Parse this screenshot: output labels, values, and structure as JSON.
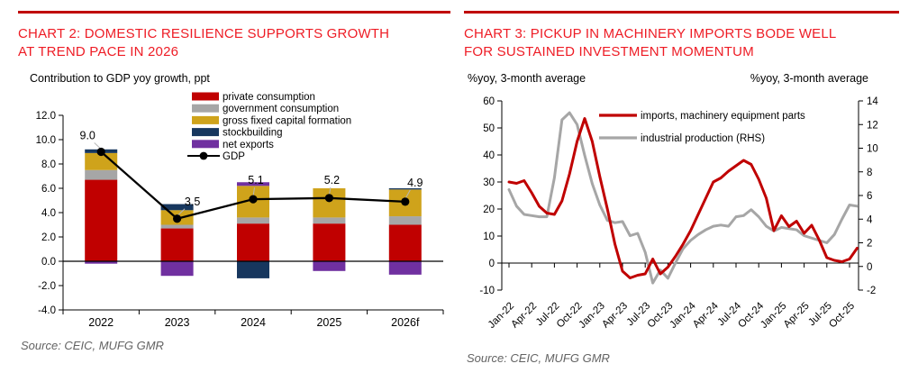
{
  "panels": {
    "chart2": {
      "title_lines": [
        "CHART 2: DOMESTIC RESILIENCE SUPPORTS GROWTH",
        "AT TREND PACE IN 2026"
      ],
      "subtitle": "Contribution to GDP yoy growth, ppt",
      "source": "Source: CEIC, MUFG GMR"
    },
    "chart3": {
      "title_lines": [
        "CHART 3: PICKUP IN MACHINERY IMPORTS BODE WELL",
        "FOR SUSTAINED INVESTMENT MOMENTUM"
      ],
      "subtitle_left": "%yoy, 3-month average",
      "subtitle_right": "%yoy, 3-month average",
      "source": "Source: CEIC, MUFG GMR"
    }
  },
  "colors": {
    "rule_red": "#C00000",
    "title_red": "#EE1C25",
    "bar_red": "#C00000",
    "gray": "#A6A6A6",
    "gold": "#CFA31B",
    "navy": "#17375E",
    "purple": "#7030A0",
    "black": "#000000",
    "leader_gray": "#B7B7B7",
    "source_gray": "#636363"
  },
  "chart_data": [
    {
      "type": "bar",
      "stacked": true,
      "title": "Contribution to GDP yoy growth, ppt",
      "categories": [
        "2022",
        "2023",
        "2024",
        "2025",
        "2026f"
      ],
      "series": [
        {
          "name": "private consumption",
          "color": "#C00000",
          "values": [
            6.7,
            2.7,
            3.1,
            3.1,
            3.0
          ]
        },
        {
          "name": "government consumption",
          "color": "#A6A6A6",
          "values": [
            0.8,
            0.3,
            0.5,
            0.5,
            0.7
          ]
        },
        {
          "name": "gross fixed capital formation",
          "color": "#CFA31B",
          "values": [
            1.4,
            1.2,
            2.6,
            2.4,
            2.2
          ]
        },
        {
          "name": "stockbuilding",
          "color": "#17375E",
          "values": [
            0.3,
            0.5,
            -1.4,
            0.0,
            0.1
          ]
        },
        {
          "name": "net exports",
          "color": "#7030A0",
          "values": [
            -0.2,
            -1.2,
            0.3,
            -0.8,
            -1.1
          ]
        }
      ],
      "line_series": {
        "name": "GDP",
        "color": "#000000",
        "values": [
          9.0,
          3.5,
          5.1,
          5.2,
          4.9
        ]
      },
      "data_labels": [
        "9.0",
        "3.5",
        "5.1",
        "5.2",
        "4.9"
      ],
      "ylim": [
        -4,
        12
      ],
      "ytick_step": 2,
      "grid": false,
      "legend_position": "top-right-inside"
    },
    {
      "type": "line",
      "x_tick_labels": [
        "Jan-22",
        "Apr-22",
        "Jul-22",
        "Oct-22",
        "Jan-23",
        "Apr-23",
        "Jul-23",
        "Oct-23",
        "Jan-24",
        "Apr-24",
        "Jul-24",
        "Oct-24",
        "Jan-25",
        "Apr-25",
        "Jul-25",
        "Oct-25"
      ],
      "points_per_tick": 3,
      "n_points": 47,
      "left_axis": {
        "label": "%yoy, 3-month average",
        "ylim": [
          -10,
          60
        ],
        "tick_step": 10
      },
      "right_axis": {
        "label": "%yoy, 3-month average",
        "ylim": [
          -2,
          14
        ],
        "tick_step": 2
      },
      "grid": false,
      "legend_position": "top-inside",
      "series": [
        {
          "name": "imports, machinery equipment parts",
          "axis": "left",
          "color": "#C00000",
          "values": [
            30,
            29.5,
            30.5,
            26,
            21,
            18.5,
            18,
            23,
            33,
            45,
            53.5,
            45,
            32,
            20,
            7,
            -3,
            -5.5,
            -4.5,
            -4,
            1.5,
            -4,
            -1.5,
            2.5,
            7,
            12,
            18,
            24,
            30,
            31.5,
            34,
            36,
            38,
            36.5,
            31,
            24,
            12,
            17.5,
            13.5,
            15.5,
            11,
            14,
            8.5,
            2,
            1,
            0.5,
            1.5,
            5.5
          ]
        },
        {
          "name": "industrial production (RHS)",
          "axis": "right",
          "color": "#A6A6A6",
          "values": [
            6.5,
            5.1,
            4.4,
            4.3,
            4.2,
            4.2,
            7.5,
            12.4,
            13.0,
            12.0,
            9.4,
            7.0,
            5.2,
            3.9,
            3.7,
            3.8,
            2.6,
            2.8,
            1.2,
            -1.4,
            -0.3,
            -1.0,
            0.3,
            1.5,
            2.2,
            2.7,
            3.1,
            3.4,
            3.5,
            3.4,
            4.2,
            4.3,
            4.8,
            4.2,
            3.4,
            3.0,
            3.3,
            3.2,
            3.1,
            2.6,
            2.4,
            2.2,
            2.0,
            2.7,
            4.0,
            5.2,
            5.1
          ]
        }
      ]
    }
  ]
}
